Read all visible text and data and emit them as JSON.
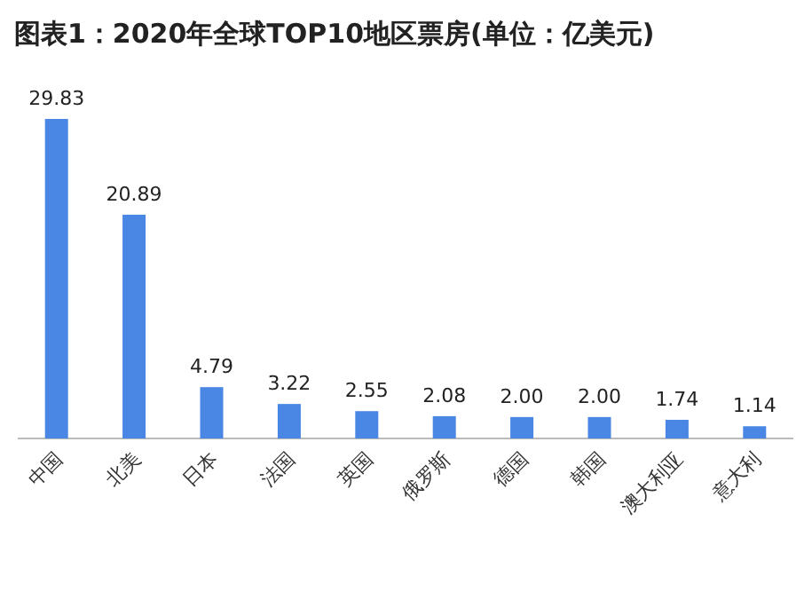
{
  "chart_data": {
    "type": "bar",
    "title": "图表1：2020年全球TOP10地区票房(单位：亿美元)",
    "categories": [
      "中国",
      "北美",
      "日本",
      "法国",
      "英国",
      "俄罗斯",
      "德国",
      "韩国",
      "澳大利亚",
      "意大利"
    ],
    "values": [
      29.83,
      20.89,
      4.79,
      3.22,
      2.55,
      2.08,
      2.0,
      2.0,
      1.74,
      1.14
    ],
    "value_labels": [
      "29.83",
      "20.89",
      "4.79",
      "3.22",
      "2.55",
      "2.08",
      "2.00",
      "2.00",
      "1.74",
      "1.14"
    ],
    "color": "#4a86e3"
  }
}
